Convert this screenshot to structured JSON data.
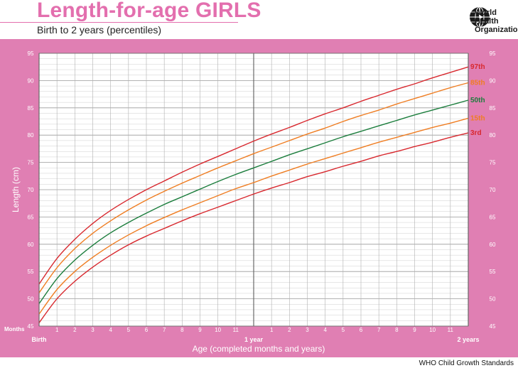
{
  "header": {
    "title": "Length-for-age GIRLS",
    "subtitle": "Birth to 2 years (percentiles)"
  },
  "logo": {
    "name": "globe-emblem-icon",
    "text_line1": "World Health",
    "text_line2": "Organization"
  },
  "footer": {
    "text": "WHO Child Growth Standards"
  },
  "colors": {
    "frame": "#e07fb3",
    "grid": "#b8b8b8",
    "p97": "#d8282e",
    "p85": "#ef7d22",
    "p50": "#1b7d3c",
    "p15": "#ef7d22",
    "p3": "#d8282e"
  },
  "chart_data": {
    "type": "line",
    "xlabel": "Age (completed months and years)",
    "ylabel": "Length (cm)",
    "xlim": [
      0,
      24
    ],
    "ylim": [
      45,
      95
    ],
    "months_label": "Months",
    "x_tick_labels": [
      {
        "month": 0,
        "label": "Birth"
      },
      {
        "month": 1,
        "label": "1"
      },
      {
        "month": 2,
        "label": "2"
      },
      {
        "month": 3,
        "label": "3"
      },
      {
        "month": 4,
        "label": "4"
      },
      {
        "month": 5,
        "label": "5"
      },
      {
        "month": 6,
        "label": "6"
      },
      {
        "month": 7,
        "label": "7"
      },
      {
        "month": 8,
        "label": "8"
      },
      {
        "month": 9,
        "label": "9"
      },
      {
        "month": 10,
        "label": "10"
      },
      {
        "month": 11,
        "label": "11"
      },
      {
        "month": 12,
        "label": "1 year"
      },
      {
        "month": 13,
        "label": "1"
      },
      {
        "month": 14,
        "label": "2"
      },
      {
        "month": 15,
        "label": "3"
      },
      {
        "month": 16,
        "label": "4"
      },
      {
        "month": 17,
        "label": "5"
      },
      {
        "month": 18,
        "label": "6"
      },
      {
        "month": 19,
        "label": "7"
      },
      {
        "month": 20,
        "label": "8"
      },
      {
        "month": 21,
        "label": "9"
      },
      {
        "month": 22,
        "label": "10"
      },
      {
        "month": 23,
        "label": "11"
      },
      {
        "month": 24,
        "label": "2 years"
      }
    ],
    "y_ticks": [
      45,
      50,
      55,
      60,
      65,
      70,
      75,
      80,
      85,
      90,
      95
    ],
    "x": [
      0,
      1,
      2,
      3,
      4,
      5,
      6,
      7,
      8,
      9,
      10,
      11,
      12,
      13,
      14,
      15,
      16,
      17,
      18,
      19,
      20,
      21,
      22,
      23,
      24
    ],
    "series": [
      {
        "name": "97th",
        "color_key": "p97",
        "values": [
          52.7,
          57.4,
          60.9,
          63.8,
          66.2,
          68.2,
          70.0,
          71.6,
          73.2,
          74.7,
          76.1,
          77.5,
          78.9,
          80.2,
          81.4,
          82.7,
          83.9,
          85.0,
          86.2,
          87.3,
          88.4,
          89.4,
          90.5,
          91.5,
          92.5
        ]
      },
      {
        "name": "85th",
        "color_key": "p85",
        "values": [
          51.1,
          55.7,
          59.2,
          62.0,
          64.3,
          66.3,
          68.1,
          69.7,
          71.2,
          72.6,
          74.0,
          75.3,
          76.6,
          77.8,
          79.0,
          80.2,
          81.3,
          82.5,
          83.6,
          84.6,
          85.7,
          86.7,
          87.7,
          88.7,
          89.6
        ]
      },
      {
        "name": "50th",
        "color_key": "p50",
        "values": [
          49.1,
          53.7,
          57.1,
          59.8,
          62.1,
          64.0,
          65.7,
          67.3,
          68.7,
          70.1,
          71.5,
          72.8,
          74.0,
          75.2,
          76.4,
          77.5,
          78.6,
          79.7,
          80.7,
          81.7,
          82.7,
          83.7,
          84.6,
          85.5,
          86.4
        ]
      },
      {
        "name": "15th",
        "color_key": "p15",
        "values": [
          47.2,
          51.7,
          55.0,
          57.6,
          59.8,
          61.7,
          63.4,
          64.9,
          66.3,
          67.6,
          68.9,
          70.2,
          71.3,
          72.5,
          73.6,
          74.7,
          75.7,
          76.7,
          77.7,
          78.7,
          79.6,
          80.5,
          81.4,
          82.2,
          83.1
        ]
      },
      {
        "name": "3rd",
        "color_key": "p3",
        "values": [
          45.6,
          50.0,
          53.2,
          55.8,
          58.0,
          59.9,
          61.5,
          62.9,
          64.3,
          65.6,
          66.8,
          68.0,
          69.2,
          70.3,
          71.3,
          72.4,
          73.3,
          74.3,
          75.2,
          76.2,
          77.0,
          77.9,
          78.7,
          79.6,
          80.4
        ]
      }
    ]
  }
}
